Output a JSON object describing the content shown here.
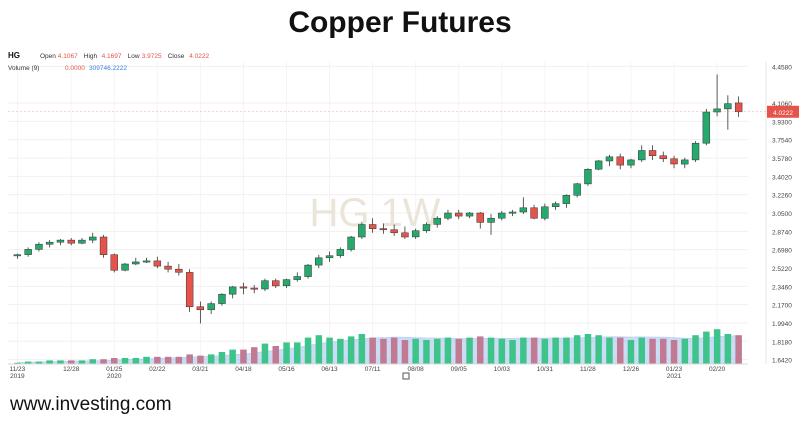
{
  "title": "Copper Futures",
  "footer": "www.investing.com",
  "header": {
    "symbol": "HG",
    "open_label": "Open",
    "open_value": "4.1067",
    "high_label": "High",
    "high_value": "4.1697",
    "low_label": "Low",
    "low_value": "3.9725",
    "close_label": "Close",
    "close_value": "4.0222",
    "volume_label": "Volume (9)",
    "volume_value": "0.0000",
    "volume_ma_value": "309746.2222"
  },
  "colors": {
    "up": "#26a96c",
    "down": "#e5534b",
    "vol_up": "#3ec48a",
    "vol_down": "#c07a94",
    "vol_area": "#a9c6f0",
    "last_price": "#e5534b"
  },
  "chart_data": {
    "type": "candlestick",
    "watermark": "HG 1W",
    "price_axis_ticks": [
      "4.4580",
      "4.1060",
      "3.9300",
      "3.7540",
      "3.5780",
      "3.4020",
      "3.2260",
      "3.0500",
      "2.8740",
      "2.6980",
      "2.5220",
      "2.3460",
      "2.1700",
      "1.9940",
      "1.8180",
      "1.6420"
    ],
    "x_tick_labels": [
      {
        "label": "11/23",
        "sub": "2019",
        "i": 0
      },
      {
        "label": "12/28",
        "i": 5
      },
      {
        "label": "01/25",
        "sub": "2020",
        "i": 9
      },
      {
        "label": "02/22",
        "i": 13
      },
      {
        "label": "03/21",
        "i": 17
      },
      {
        "label": "04/18",
        "i": 21
      },
      {
        "label": "05/16",
        "i": 25
      },
      {
        "label": "06/13",
        "i": 29
      },
      {
        "label": "07/11",
        "i": 33
      },
      {
        "label": "08/08",
        "i": 37
      },
      {
        "label": "09/05",
        "i": 41
      },
      {
        "label": "10/03",
        "i": 45
      },
      {
        "label": "10/31",
        "i": 49
      },
      {
        "label": "11/28",
        "i": 53
      },
      {
        "label": "12/26",
        "i": 57
      },
      {
        "label": "01/23",
        "sub": "2021",
        "i": 61
      },
      {
        "label": "02/20",
        "i": 65
      }
    ],
    "last_price": "4.0222",
    "candles": [
      [
        2.64,
        2.66,
        2.61,
        2.65,
        1
      ],
      [
        2.65,
        2.72,
        2.63,
        2.7,
        2
      ],
      [
        2.7,
        2.77,
        2.68,
        2.75,
        2
      ],
      [
        2.75,
        2.79,
        2.72,
        2.77,
        3
      ],
      [
        2.77,
        2.8,
        2.74,
        2.79,
        3
      ],
      [
        2.79,
        2.81,
        2.74,
        2.76,
        3
      ],
      [
        2.76,
        2.81,
        2.75,
        2.79,
        3
      ],
      [
        2.79,
        2.86,
        2.76,
        2.82,
        4
      ],
      [
        2.82,
        2.84,
        2.62,
        2.65,
        4
      ],
      [
        2.65,
        2.66,
        2.48,
        2.5,
        5
      ],
      [
        2.5,
        2.57,
        2.49,
        2.56,
        5
      ],
      [
        2.56,
        2.62,
        2.55,
        2.58,
        5
      ],
      [
        2.58,
        2.62,
        2.57,
        2.59,
        6
      ],
      [
        2.59,
        2.63,
        2.52,
        2.54,
        6
      ],
      [
        2.54,
        2.58,
        2.48,
        2.51,
        6
      ],
      [
        2.51,
        2.56,
        2.45,
        2.48,
        6
      ],
      [
        2.48,
        2.51,
        2.1,
        2.15,
        8
      ],
      [
        2.15,
        2.2,
        1.99,
        2.12,
        7
      ],
      [
        2.12,
        2.2,
        2.08,
        2.18,
        8
      ],
      [
        2.18,
        2.28,
        2.16,
        2.27,
        10
      ],
      [
        2.27,
        2.35,
        2.23,
        2.34,
        12
      ],
      [
        2.34,
        2.38,
        2.27,
        2.33,
        12
      ],
      [
        2.33,
        2.36,
        2.28,
        2.32,
        14
      ],
      [
        2.32,
        2.42,
        2.3,
        2.4,
        17
      ],
      [
        2.4,
        2.42,
        2.33,
        2.35,
        15
      ],
      [
        2.35,
        2.42,
        2.33,
        2.41,
        18
      ],
      [
        2.41,
        2.48,
        2.39,
        2.44,
        18
      ],
      [
        2.44,
        2.56,
        2.42,
        2.55,
        22
      ],
      [
        2.55,
        2.65,
        2.52,
        2.62,
        24
      ],
      [
        2.62,
        2.68,
        2.58,
        2.64,
        22
      ],
      [
        2.64,
        2.72,
        2.62,
        2.7,
        21
      ],
      [
        2.7,
        2.83,
        2.68,
        2.82,
        23
      ],
      [
        2.82,
        2.96,
        2.8,
        2.94,
        25
      ],
      [
        2.94,
        3.0,
        2.86,
        2.9,
        22
      ],
      [
        2.9,
        2.95,
        2.85,
        2.89,
        21
      ],
      [
        2.89,
        2.94,
        2.83,
        2.86,
        22
      ],
      [
        2.86,
        2.92,
        2.8,
        2.82,
        20
      ],
      [
        2.82,
        2.9,
        2.8,
        2.88,
        21
      ],
      [
        2.88,
        2.96,
        2.86,
        2.94,
        20
      ],
      [
        2.94,
        3.02,
        2.91,
        3.0,
        21
      ],
      [
        3.0,
        3.08,
        2.98,
        3.05,
        22
      ],
      [
        3.05,
        3.08,
        2.99,
        3.02,
        21
      ],
      [
        3.02,
        3.06,
        3.0,
        3.05,
        22
      ],
      [
        3.05,
        3.06,
        2.9,
        2.96,
        23
      ],
      [
        2.96,
        3.04,
        2.84,
        3.0,
        22
      ],
      [
        3.0,
        3.07,
        2.98,
        3.05,
        21
      ],
      [
        3.05,
        3.08,
        3.02,
        3.06,
        20
      ],
      [
        3.06,
        3.2,
        3.04,
        3.1,
        22
      ],
      [
        3.1,
        3.13,
        2.99,
        3.0,
        22
      ],
      [
        3.0,
        3.14,
        2.98,
        3.11,
        21
      ],
      [
        3.11,
        3.16,
        3.08,
        3.14,
        22
      ],
      [
        3.14,
        3.23,
        3.1,
        3.22,
        22
      ],
      [
        3.22,
        3.34,
        3.2,
        3.33,
        24
      ],
      [
        3.33,
        3.48,
        3.31,
        3.47,
        25
      ],
      [
        3.47,
        3.56,
        3.46,
        3.55,
        24
      ],
      [
        3.55,
        3.61,
        3.5,
        3.59,
        22
      ],
      [
        3.59,
        3.62,
        3.47,
        3.51,
        22
      ],
      [
        3.51,
        3.57,
        3.48,
        3.56,
        20
      ],
      [
        3.56,
        3.7,
        3.54,
        3.65,
        22
      ],
      [
        3.65,
        3.7,
        3.56,
        3.6,
        21
      ],
      [
        3.6,
        3.64,
        3.54,
        3.57,
        21
      ],
      [
        3.57,
        3.6,
        3.48,
        3.52,
        20
      ],
      [
        3.52,
        3.58,
        3.48,
        3.56,
        21
      ],
      [
        3.56,
        3.74,
        3.54,
        3.72,
        24
      ],
      [
        3.72,
        4.05,
        3.7,
        4.02,
        27
      ],
      [
        4.02,
        4.38,
        3.98,
        4.05,
        29
      ],
      [
        4.05,
        4.18,
        3.85,
        4.1,
        25
      ],
      [
        4.107,
        4.17,
        3.973,
        4.022,
        24
      ]
    ],
    "volume_scale": [
      0,
      30
    ]
  }
}
